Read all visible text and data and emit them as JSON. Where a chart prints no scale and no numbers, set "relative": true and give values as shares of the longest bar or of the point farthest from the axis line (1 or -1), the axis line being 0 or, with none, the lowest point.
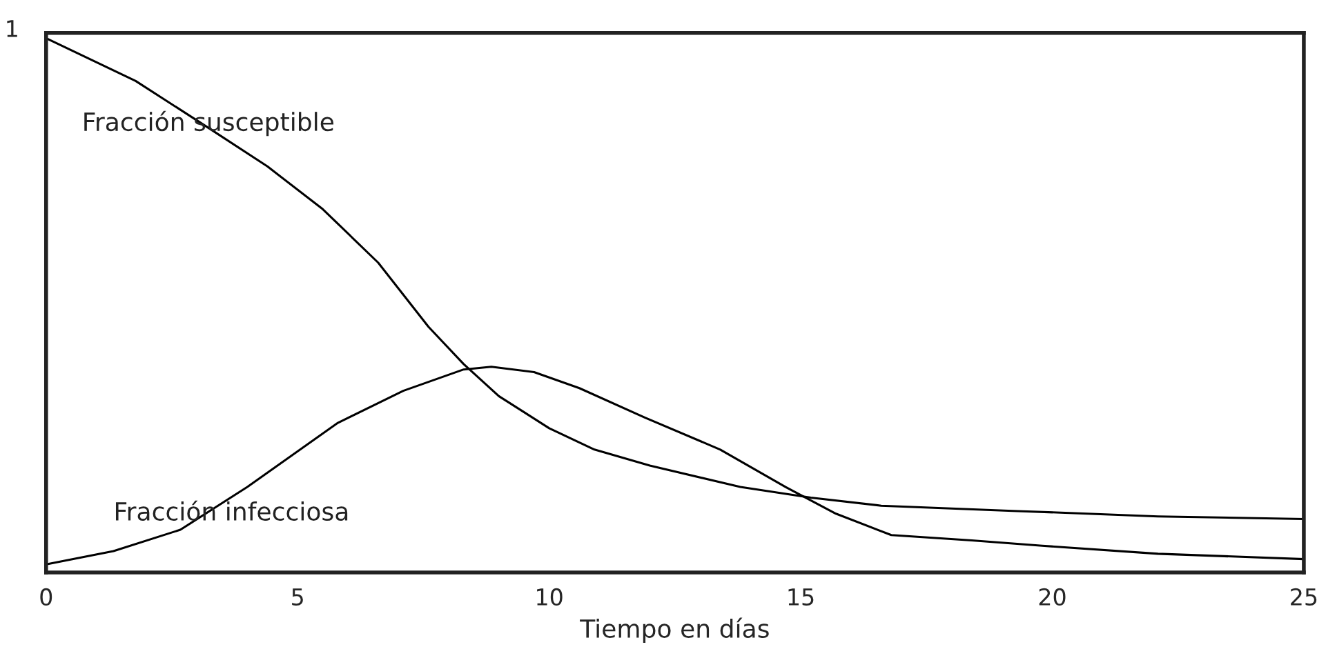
{
  "chart_data": {
    "type": "line",
    "relative": true,
    "xlabel": "Tiempo en días",
    "xlim": [
      0,
      25
    ],
    "xticks": [
      0,
      5,
      10,
      15,
      20,
      25
    ],
    "grid": false,
    "legend": false,
    "marker": "none",
    "line_style": "solid",
    "annotations": [
      {
        "text": "1",
        "x": 0,
        "y": 1
      }
    ],
    "series": [
      {
        "name": "Fracción susceptible",
        "color": "#000000",
        "x": [
          0,
          1.78,
          3.1,
          4.4,
          5.5,
          6.6,
          7.1,
          7.6,
          8.3,
          9.0,
          10.0,
          10.9,
          12.0,
          13.8,
          15.2,
          16.6,
          19.3,
          22.1,
          25
        ],
        "values": [
          1.0,
          0.92,
          0.84,
          0.76,
          0.68,
          0.58,
          0.52,
          0.46,
          0.39,
          0.33,
          0.27,
          0.23,
          0.2,
          0.16,
          0.14,
          0.125,
          0.115,
          0.105,
          0.1
        ]
      },
      {
        "name": "Fracción infecciosa",
        "color": "#000000",
        "x": [
          0,
          1.34,
          2.67,
          4.0,
          4.9,
          5.8,
          7.1,
          8.3,
          8.85,
          9.7,
          10.6,
          11.9,
          13.4,
          14.7,
          15.7,
          16.8,
          18.4,
          19.8,
          22.1,
          25
        ],
        "values": [
          0.015,
          0.04,
          0.08,
          0.16,
          0.22,
          0.28,
          0.34,
          0.38,
          0.385,
          0.375,
          0.345,
          0.29,
          0.23,
          0.16,
          0.11,
          0.07,
          0.06,
          0.05,
          0.035,
          0.025
        ]
      }
    ]
  }
}
